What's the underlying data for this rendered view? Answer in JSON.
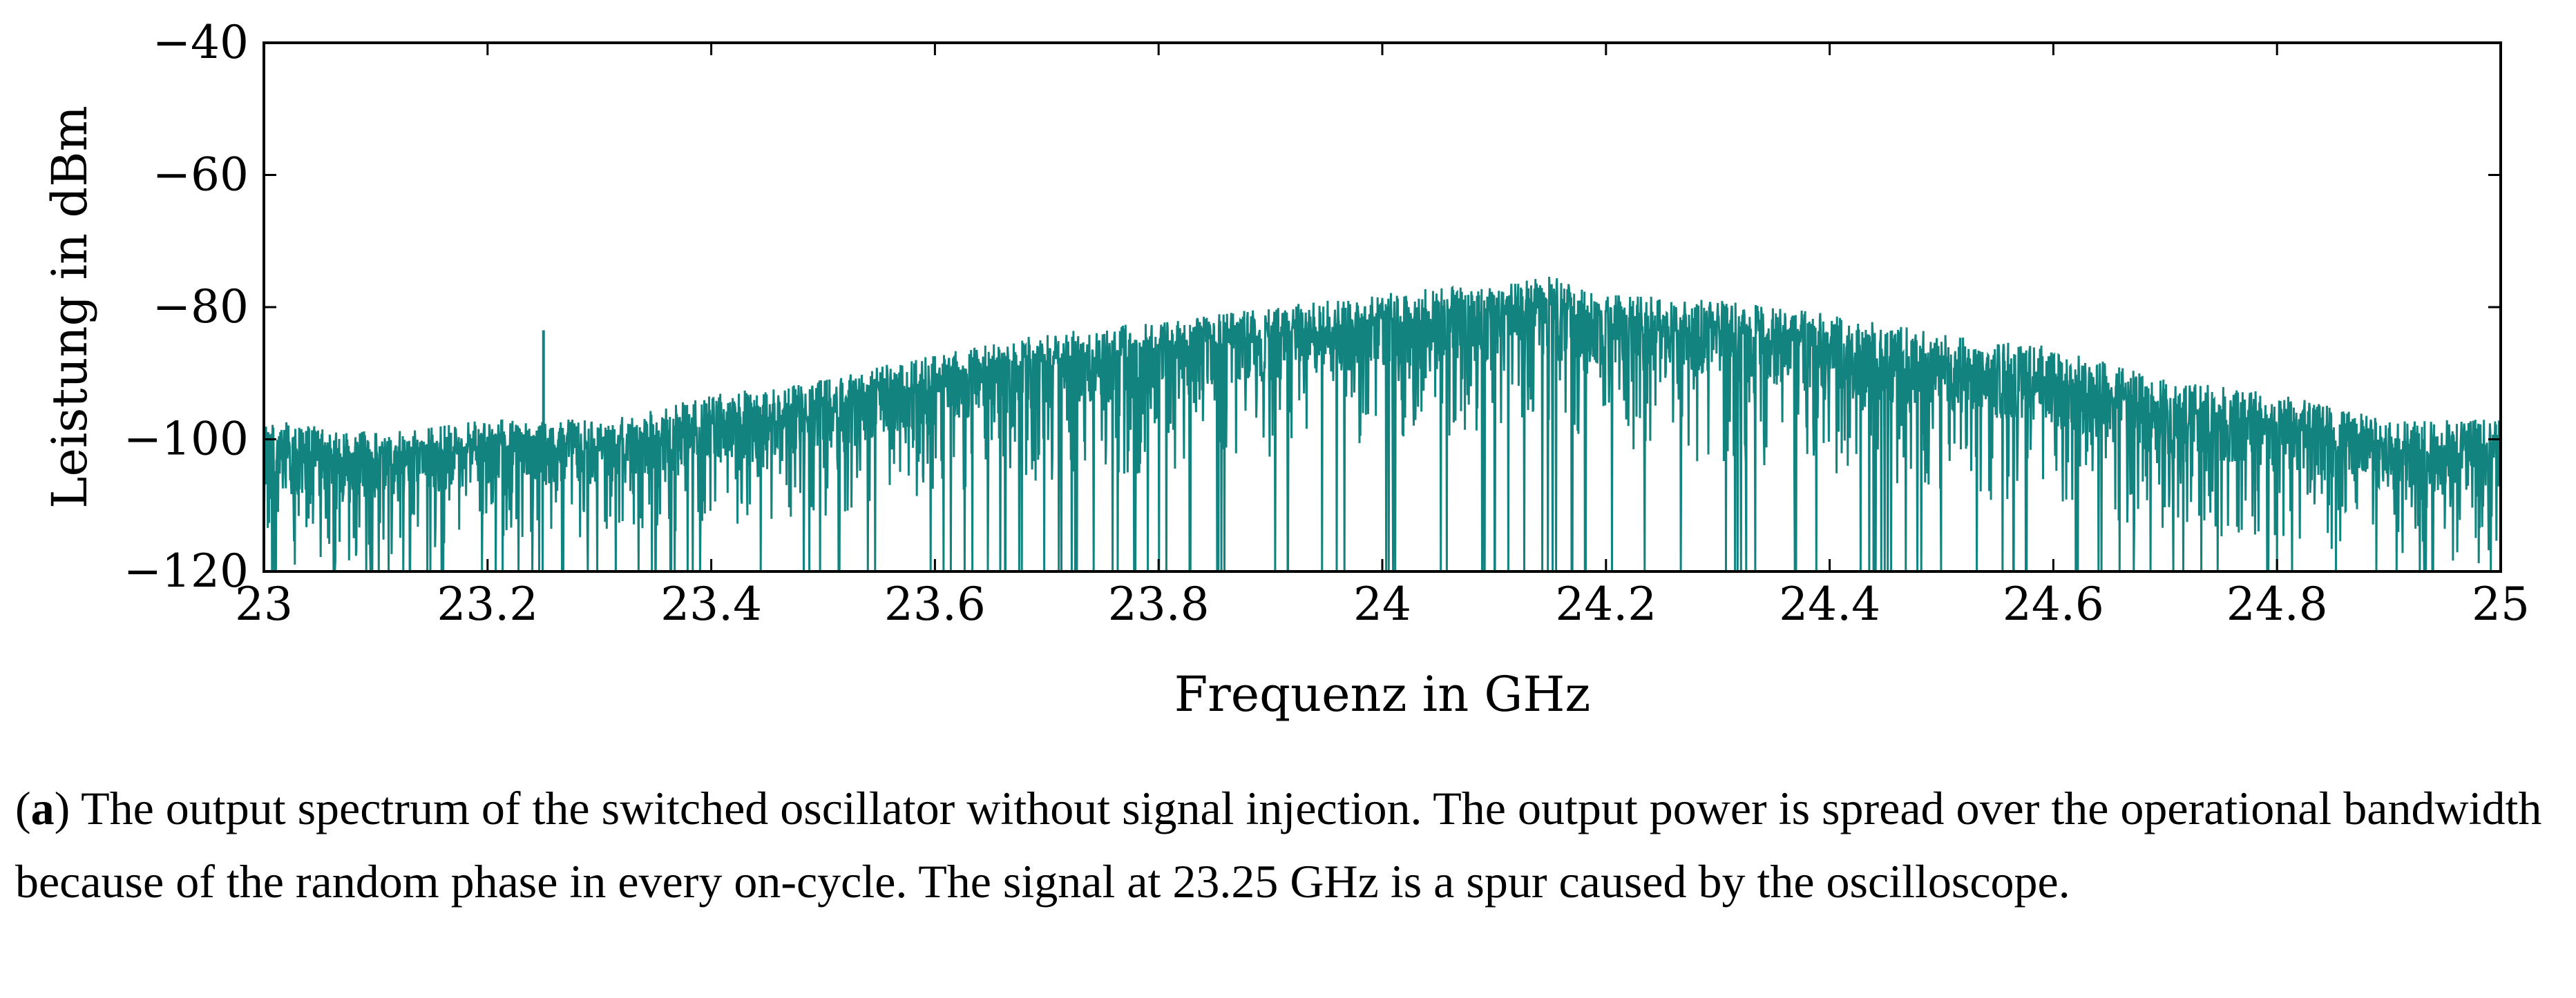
{
  "chart_data": {
    "type": "line",
    "xlabel": "Frequenz in GHz",
    "ylabel": "Leistung in dBm",
    "xlim": [
      23,
      25
    ],
    "ylim": [
      -120,
      -40
    ],
    "x_ticks": [
      23,
      23.2,
      23.4,
      23.6,
      23.8,
      24,
      24.2,
      24.4,
      24.6,
      24.8,
      25
    ],
    "x_tick_labels": [
      "23",
      "23.2",
      "23.4",
      "23.6",
      "23.8",
      "24",
      "24.2",
      "24.4",
      "24.6",
      "24.8",
      "25"
    ],
    "y_ticks": [
      -40,
      -60,
      -80,
      -100,
      -120
    ],
    "y_tick_labels": [
      "−40",
      "−60",
      "−80",
      "−100",
      "−120"
    ],
    "grid": false,
    "series": [
      {
        "name": "output spectrum",
        "color": "#12837f",
        "x": [
          23.0,
          23.1,
          23.2,
          23.3,
          23.4,
          23.5,
          23.6,
          23.7,
          23.8,
          23.9,
          24.0,
          24.05,
          24.1,
          24.15,
          24.2,
          24.3,
          24.4,
          24.5,
          24.6,
          24.7,
          24.8,
          24.9,
          25.0
        ],
        "upper_envelope": [
          -97,
          -99,
          -97,
          -97,
          -93,
          -91,
          -87,
          -84,
          -82,
          -80,
          -78,
          -77,
          -77,
          -75,
          -78,
          -79,
          -81,
          -84,
          -86,
          -91,
          -93,
          -97,
          -97
        ],
        "lower_envelope": [
          -120,
          -118,
          -115,
          -115,
          -114,
          -112,
          -108,
          -107,
          -105,
          -103,
          -100,
          -100,
          -99,
          -98,
          -101,
          -104,
          -105,
          -108,
          -111,
          -114,
          -116,
          -118,
          -120
        ],
        "spur": {
          "x": 23.25,
          "y": -83.5
        }
      }
    ]
  },
  "caption": {
    "label": "a",
    "text": " The output spectrum of the switched oscillator without signal injection. The output power is spread over the operational bandwidth because of the random phase in every on-cycle. The signal at 23.25 GHz is a spur caused by the oscilloscope."
  }
}
